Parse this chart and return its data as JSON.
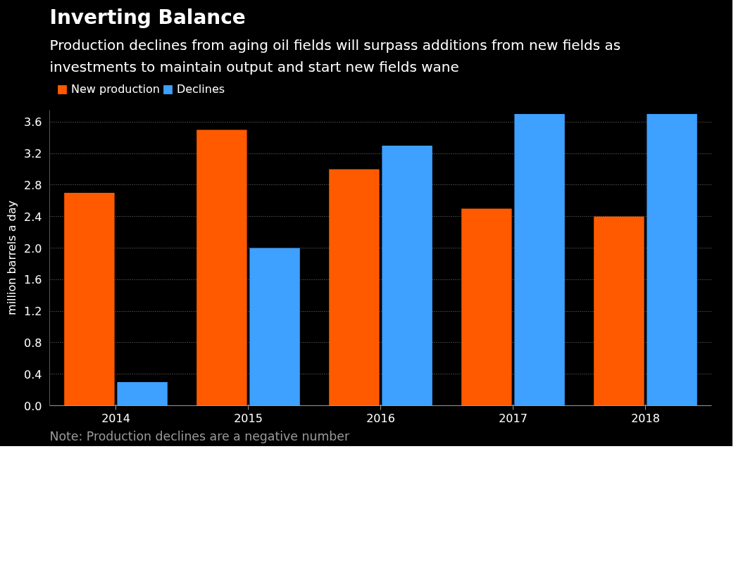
{
  "chart_data": {
    "type": "bar",
    "title": "Inverting Balance",
    "subtitle": "Production declines from aging oil fields will surpass additions from new fields as investments to maintain output and start new fields wane",
    "ylabel": "million barrels a day",
    "categories": [
      "2014",
      "2015",
      "2016",
      "2017",
      "2018"
    ],
    "series": [
      {
        "name": "New production",
        "color": "#ff5a00",
        "values": [
          2.7,
          3.5,
          3.0,
          2.5,
          2.4
        ]
      },
      {
        "name": "Declines",
        "color": "#3ea0ff",
        "values": [
          0.3,
          2.0,
          3.3,
          3.7,
          3.7
        ]
      }
    ],
    "ylim": [
      0,
      3.75
    ],
    "yticks": [
      {
        "value": 0,
        "label": "0.0"
      },
      0.4,
      0.8,
      1.2,
      1.6,
      {
        "value": 2,
        "label": "2.0"
      },
      2.4,
      2.8,
      3.2,
      3.6
    ],
    "grid": "y",
    "legend": "top left",
    "annotations": [
      "Note: Production declines are a negative number"
    ]
  }
}
